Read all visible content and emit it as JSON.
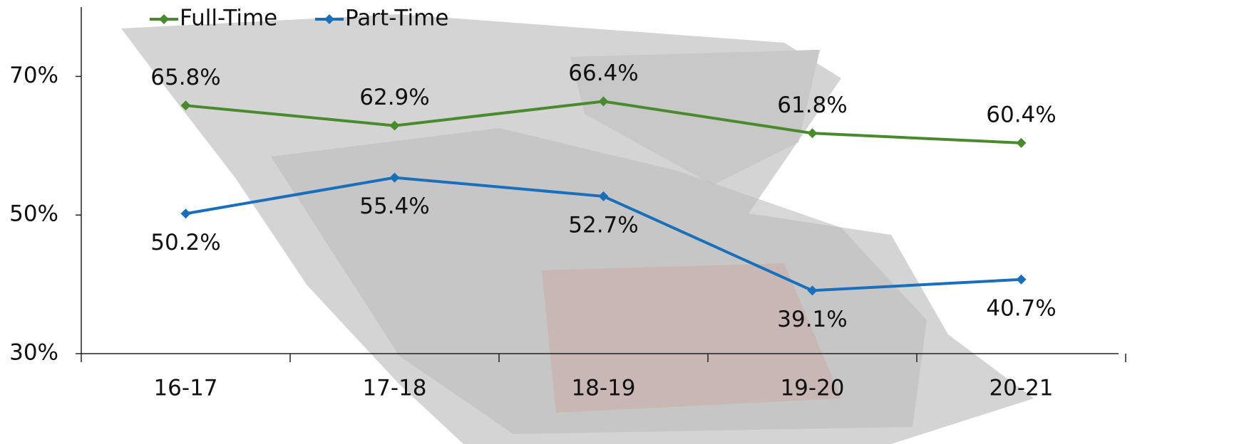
{
  "chart_data": {
    "type": "line",
    "categories": [
      "16-17",
      "17-18",
      "18-19",
      "19-20",
      "20-21"
    ],
    "series": [
      {
        "name": "Full-Time",
        "color": "#4a8a2f",
        "values": [
          65.8,
          62.9,
          66.4,
          61.8,
          60.4
        ],
        "value_labels": [
          "65.8%",
          "62.9%",
          "66.4%",
          "61.8%",
          "60.4%"
        ]
      },
      {
        "name": "Part-Time",
        "color": "#1a6fba",
        "values": [
          50.2,
          55.4,
          52.7,
          39.1,
          40.7
        ],
        "value_labels": [
          "50.2%",
          "55.4%",
          "52.7%",
          "39.1%",
          "40.7%"
        ]
      }
    ],
    "ylim": [
      30,
      80
    ],
    "yticks": [
      {
        "value": 30,
        "label": "30%"
      },
      {
        "value": 50,
        "label": "50%"
      },
      {
        "value": 70,
        "label": "70%"
      }
    ],
    "legend": "top-left"
  }
}
